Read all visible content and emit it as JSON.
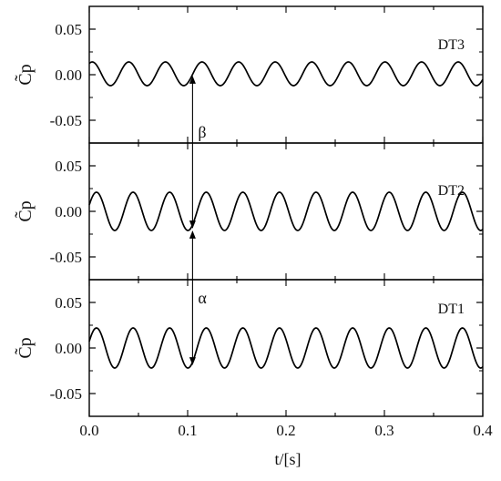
{
  "chart_data": {
    "type": "line",
    "xlabel": "t/[s]",
    "x_ticks": [
      "0.0",
      "0.1",
      "0.2",
      "0.3",
      "0.4"
    ],
    "xlim": [
      0.0,
      0.4
    ],
    "ylim": [
      -0.075,
      0.075
    ],
    "y_ticks": [
      "0.05",
      "0.00",
      "-0.05"
    ],
    "ylabel": "C̃p",
    "panels": [
      {
        "label": "DT3",
        "amplitude": 0.013,
        "period": 0.0372,
        "phase_peak_t": 0.003,
        "offset": 0.001
      },
      {
        "label": "DT2",
        "amplitude": 0.021,
        "period": 0.0372,
        "phase_peak_t": 0.0445,
        "offset": 0.0
      },
      {
        "label": "DT1",
        "amplitude": 0.022,
        "period": 0.0372,
        "phase_peak_t": 0.0445,
        "offset": 0.0
      }
    ],
    "annotations": [
      {
        "text": "β",
        "x": 0.105
      },
      {
        "text": "α",
        "x": 0.105
      }
    ]
  }
}
